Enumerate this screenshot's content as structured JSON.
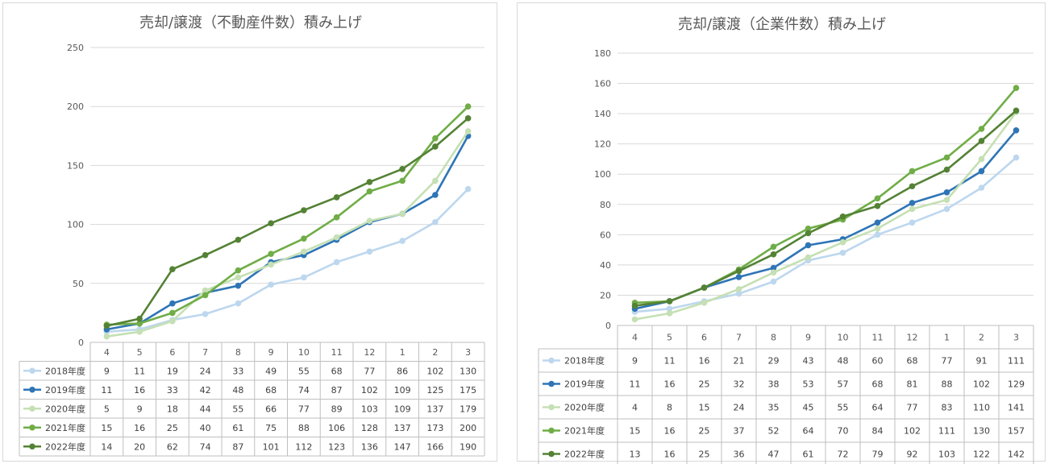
{
  "chart_data": [
    {
      "type": "line",
      "title": "売却/譲渡（不動産件数）積み上げ",
      "categories": [
        "4",
        "5",
        "6",
        "7",
        "8",
        "9",
        "10",
        "11",
        "12",
        "1",
        "2",
        "3"
      ],
      "ylim": [
        0,
        250
      ],
      "yticks": [
        0,
        50,
        100,
        150,
        200,
        250
      ],
      "grid": true,
      "legend": "data-table",
      "series": [
        {
          "name": "2018年度",
          "color": "#bdd7ee",
          "values": [
            9,
            11,
            19,
            24,
            33,
            49,
            55,
            68,
            77,
            86,
            102,
            130
          ]
        },
        {
          "name": "2019年度",
          "color": "#2e75b6",
          "values": [
            11,
            16,
            33,
            42,
            48,
            68,
            74,
            87,
            102,
            109,
            125,
            175
          ]
        },
        {
          "name": "2020年度",
          "color": "#c5e0b4",
          "values": [
            5,
            9,
            18,
            44,
            55,
            66,
            77,
            89,
            103,
            109,
            137,
            179
          ]
        },
        {
          "name": "2021年度",
          "color": "#70ad47",
          "values": [
            15,
            16,
            25,
            40,
            61,
            75,
            88,
            106,
            128,
            137,
            173,
            200
          ]
        },
        {
          "name": "2022年度",
          "color": "#548235",
          "values": [
            14,
            20,
            62,
            74,
            87,
            101,
            112,
            123,
            136,
            147,
            166,
            190
          ]
        }
      ]
    },
    {
      "type": "line",
      "title": "売却/譲渡（企業件数）積み上げ",
      "categories": [
        "4",
        "5",
        "6",
        "7",
        "8",
        "9",
        "10",
        "11",
        "12",
        "1",
        "2",
        "3"
      ],
      "ylim": [
        0,
        180
      ],
      "yticks": [
        0,
        20,
        40,
        60,
        80,
        100,
        120,
        140,
        160,
        180
      ],
      "grid": true,
      "legend": "data-table",
      "series": [
        {
          "name": "2018年度",
          "color": "#bdd7ee",
          "values": [
            9,
            11,
            16,
            21,
            29,
            43,
            48,
            60,
            68,
            77,
            91,
            111
          ]
        },
        {
          "name": "2019年度",
          "color": "#2e75b6",
          "values": [
            11,
            16,
            25,
            32,
            38,
            53,
            57,
            68,
            81,
            88,
            102,
            129
          ]
        },
        {
          "name": "2020年度",
          "color": "#c5e0b4",
          "values": [
            4,
            8,
            15,
            24,
            35,
            45,
            55,
            64,
            77,
            83,
            110,
            141
          ]
        },
        {
          "name": "2021年度",
          "color": "#70ad47",
          "values": [
            15,
            16,
            25,
            37,
            52,
            64,
            70,
            84,
            102,
            111,
            130,
            157
          ]
        },
        {
          "name": "2022年度",
          "color": "#548235",
          "values": [
            13,
            16,
            25,
            36,
            47,
            61,
            72,
            79,
            92,
            103,
            122,
            142
          ]
        }
      ]
    }
  ]
}
